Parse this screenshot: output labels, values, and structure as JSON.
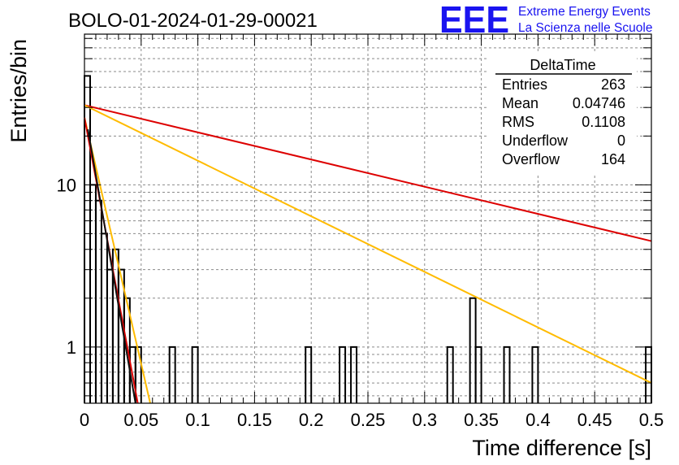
{
  "title": "BOLO-01-2024-01-29-00021",
  "logo": {
    "mark": "EEE",
    "line1": "Extreme Energy Events",
    "line2": "La Scienza nelle Scuole",
    "color": "#1a14f0"
  },
  "stats": {
    "name": "DeltaTime",
    "rows": [
      {
        "label": "Entries",
        "value": "263"
      },
      {
        "label": "Mean",
        "value": "0.04746"
      },
      {
        "label": "RMS",
        "value": "0.1108"
      },
      {
        "label": "Underflow",
        "value": "0"
      },
      {
        "label": "Overflow",
        "value": "164"
      }
    ]
  },
  "chart_data": {
    "type": "histogram",
    "title": "BOLO-01-2024-01-29-00021",
    "xlabel": "Time difference [s]",
    "ylabel": "Entries/bin",
    "xlim": [
      0,
      0.5
    ],
    "ylim": [
      0.45,
      85
    ],
    "yscale": "log",
    "grid": true,
    "x_ticks": [
      "0",
      "0.05",
      "0.1",
      "0.15",
      "0.2",
      "0.25",
      "0.3",
      "0.35",
      "0.4",
      "0.45",
      "0.5"
    ],
    "y_ticks": [
      "1",
      "10"
    ],
    "bin_width": 0.005,
    "bins": [
      {
        "x": 0.0,
        "y": 47
      },
      {
        "x": 0.005,
        "y": 10
      },
      {
        "x": 0.01,
        "y": 8
      },
      {
        "x": 0.015,
        "y": 5
      },
      {
        "x": 0.02,
        "y": 3
      },
      {
        "x": 0.025,
        "y": 4
      },
      {
        "x": 0.03,
        "y": 3
      },
      {
        "x": 0.035,
        "y": 2
      },
      {
        "x": 0.04,
        "y": 1
      },
      {
        "x": 0.045,
        "y": 1
      },
      {
        "x": 0.075,
        "y": 1
      },
      {
        "x": 0.095,
        "y": 1
      },
      {
        "x": 0.195,
        "y": 1
      },
      {
        "x": 0.225,
        "y": 1
      },
      {
        "x": 0.235,
        "y": 1
      },
      {
        "x": 0.32,
        "y": 1
      },
      {
        "x": 0.34,
        "y": 2
      },
      {
        "x": 0.345,
        "y": 1
      },
      {
        "x": 0.37,
        "y": 1
      },
      {
        "x": 0.395,
        "y": 1
      },
      {
        "x": 0.495,
        "y": 1
      }
    ],
    "fits": [
      {
        "color": "#dd0000",
        "x": [
          0,
          0.5
        ],
        "y": [
          31,
          4.5
        ]
      },
      {
        "color": "#ffbb00",
        "x": [
          0,
          0.5
        ],
        "y": [
          31,
          0.6
        ]
      },
      {
        "color": "#ffbb00",
        "x": [
          0,
          0.058
        ],
        "y": [
          26,
          0.45
        ]
      },
      {
        "color": "#dd0000",
        "x": [
          0,
          0.047
        ],
        "y": [
          26,
          0.45
        ]
      },
      {
        "color": "#111111",
        "x": [
          0.003,
          0.045
        ],
        "y": [
          22,
          0.45
        ]
      }
    ]
  }
}
